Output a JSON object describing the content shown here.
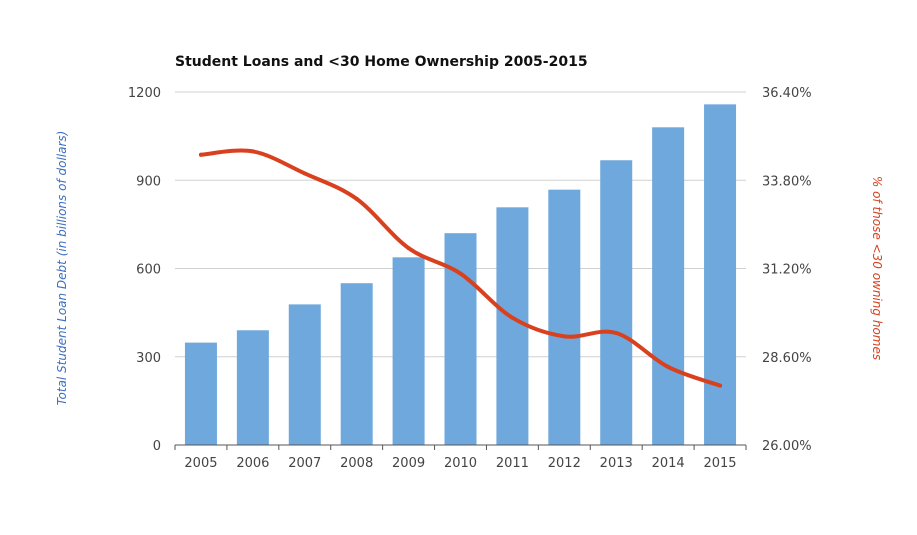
{
  "chart_data": {
    "type": "bar",
    "title": "Student Loans and <30 Home Ownership 2005-2015",
    "categories": [
      "2005",
      "2006",
      "2007",
      "2008",
      "2009",
      "2010",
      "2011",
      "2012",
      "2013",
      "2014",
      "2015"
    ],
    "series": [
      {
        "type": "bar",
        "axis": "left",
        "color": "#6fa8dc",
        "values": [
          348,
          390,
          478,
          550,
          638,
          720,
          808,
          868,
          968,
          1080,
          1158
        ]
      },
      {
        "type": "line",
        "axis": "right",
        "color": "#d9411e",
        "smooth": true,
        "values": [
          34.55,
          34.65,
          34.0,
          33.25,
          31.8,
          31.05,
          29.75,
          29.2,
          29.3,
          28.3,
          27.75
        ]
      }
    ],
    "ylabel_left": "Total Student Loan Debt (in billions of dollars)",
    "ylabel_right": "% of those <30 owning homes",
    "ylim_left": [
      0,
      1200
    ],
    "ylim_right": [
      26.0,
      36.4
    ],
    "yticks_left": [
      "0",
      "300",
      "600",
      "900",
      "1200"
    ],
    "yticks_right": [
      "26.00%",
      "28.60%",
      "31.20%",
      "33.80%",
      "36.40%"
    ],
    "colors": {
      "ylabel_left": "#3c6fc1",
      "ylabel_right": "#d9411e",
      "grid": "#d0d0d0",
      "axis": "#555555"
    },
    "grid": true,
    "legend": false
  }
}
